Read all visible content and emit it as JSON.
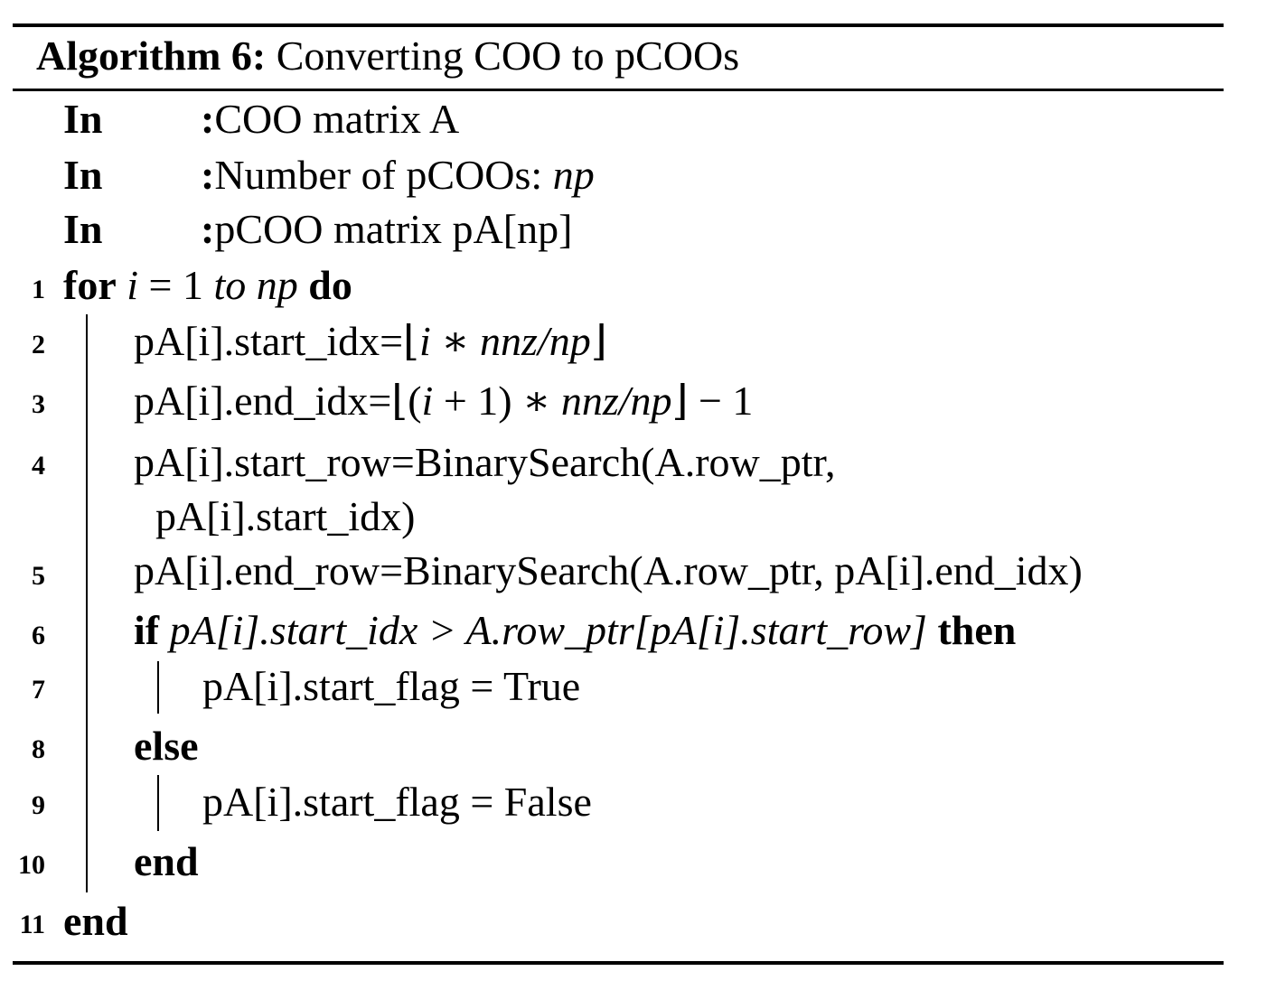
{
  "caption": {
    "label": "Algorithm 6:",
    "title": "Converting COO to pCOOs"
  },
  "inputs": [
    {
      "keyword": "In",
      "colon": ":",
      "text": "COO matrix A"
    },
    {
      "keyword": "In",
      "colon": ":",
      "text": "Number of pCOOs: ",
      "math": "np"
    },
    {
      "keyword": "In",
      "colon": ":",
      "text": "pCOO matrix pA[np]"
    }
  ],
  "line_numbers": [
    "1",
    "2",
    "3",
    "4",
    "5",
    "6",
    "7",
    "8",
    "9",
    "10",
    "11"
  ],
  "lines": {
    "l1": {
      "kw_for": "for",
      "var": "i",
      "eq": " = 1 ",
      "to": "to",
      "np": " np",
      "kw_do": "do"
    },
    "l2": {
      "text": "pA[i].start_idx=⌊",
      "math": "i ∗ nnz/np",
      "close": "⌋"
    },
    "l3": {
      "text": "pA[i].end_idx=⌊(",
      "var": "i",
      "mid": " + 1) ∗ ",
      "math": "nnz/np",
      "close": "⌋ − 1"
    },
    "l4a": {
      "text": "pA[i].start_row=BinarySearch(A.row_ptr,"
    },
    "l4b": {
      "text": "pA[i].start_idx)"
    },
    "l5": {
      "text": "pA[i].end_row=BinarySearch(A.row_ptr, pA[i].end_idx)"
    },
    "l6": {
      "kw_if": "if",
      "cond": " pA[i].start_idx > A.row_ptr[pA[i].start_row] ",
      "kw_then": "then"
    },
    "l7": {
      "text": "pA[i].start_flag = True"
    },
    "l8": {
      "kw_else": "else"
    },
    "l9": {
      "text": "pA[i].start_flag = False"
    },
    "l10": {
      "kw_end": "end"
    },
    "l11": {
      "kw_end": "end"
    }
  }
}
